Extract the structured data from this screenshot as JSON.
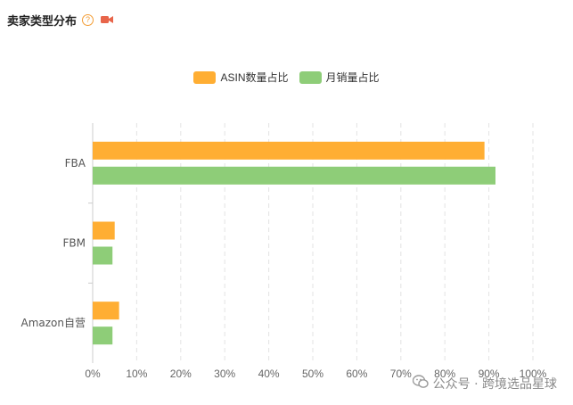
{
  "header": {
    "title": "卖家类型分布",
    "help_glyph": "?",
    "help_icon": "question-circle-icon",
    "video_icon": "video-camera-icon",
    "video_icon_color": "#e8654a"
  },
  "watermark": {
    "icon": "wechat-icon",
    "text": "公众号 · 跨境选品星球"
  },
  "chart_data": {
    "type": "bar",
    "orientation": "horizontal",
    "categories": [
      "FBA",
      "FBM",
      "Amazon自营"
    ],
    "series": [
      {
        "name": "ASIN数量占比",
        "color": "#ffae33",
        "values": [
          89,
          5,
          6
        ]
      },
      {
        "name": "月销量占比",
        "color": "#8ecd78",
        "values": [
          91.5,
          4.5,
          4.5
        ]
      }
    ],
    "xlim": [
      0,
      100
    ],
    "xticks": [
      "0%",
      "10%",
      "20%",
      "30%",
      "40%",
      "50%",
      "60%",
      "70%",
      "80%",
      "90%",
      "100%"
    ],
    "grid": "vertical-dashed",
    "legend_position": "top-center"
  }
}
